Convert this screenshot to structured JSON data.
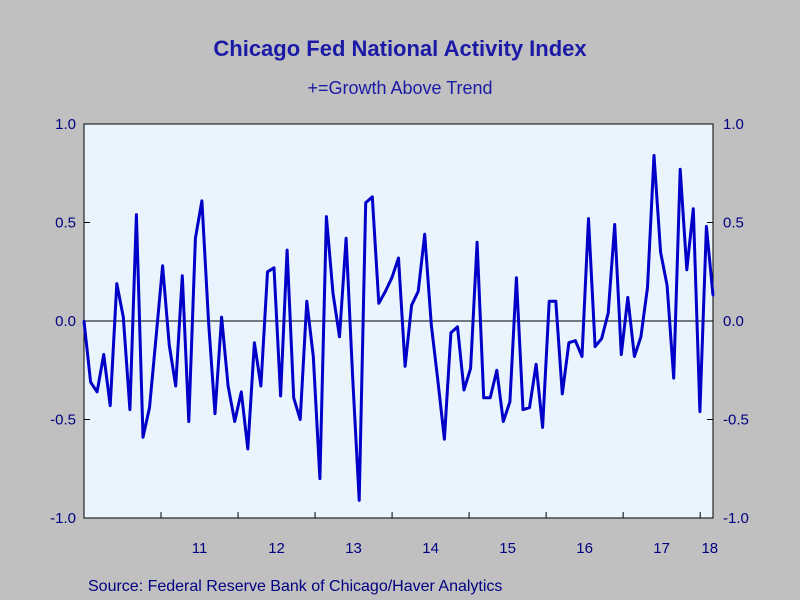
{
  "chart_data": {
    "type": "line",
    "title": "Chicago Fed National Activity Index",
    "subtitle": "+=Growth Above Trend",
    "source": "Source:  Federal Reserve Bank of Chicago/Haver Analytics",
    "ylim": [
      -1.0,
      1.0
    ],
    "y_ticks": [
      "1.0",
      "0.5",
      "0.0",
      "-0.5",
      "-1.0"
    ],
    "x_tick_labels": [
      "11",
      "12",
      "13",
      "14",
      "15",
      "16",
      "17",
      "18"
    ],
    "x_start": "2010-01",
    "x_end": "2018-03",
    "grid": false,
    "zero_line": true,
    "colors": {
      "line": "#0000c8",
      "plot_background": "#eaf4ff",
      "page_background": "#c0c0c0",
      "text": "#000080",
      "title": "#1a1aa6"
    },
    "series": [
      {
        "values": [
          0.0,
          -0.31,
          -0.36,
          -0.17,
          -0.43,
          0.19,
          0.02,
          -0.45,
          0.54,
          -0.59,
          -0.44,
          -0.08,
          0.28,
          -0.12,
          -0.33,
          0.23,
          -0.51,
          0.42,
          0.61,
          0.0,
          -0.47,
          0.02,
          -0.33,
          -0.51,
          -0.36,
          -0.65,
          -0.11,
          -0.33,
          0.25,
          0.27,
          -0.38,
          0.36,
          -0.39,
          -0.5,
          0.1,
          -0.18,
          -0.8,
          0.53,
          0.14,
          -0.08,
          0.42,
          -0.28,
          -0.91,
          0.6,
          0.63,
          0.09,
          0.15,
          0.22,
          0.32,
          -0.23,
          0.08,
          0.15,
          0.44,
          -0.02,
          -0.3,
          -0.6,
          -0.06,
          -0.03,
          -0.35,
          -0.24,
          0.4,
          -0.39,
          -0.39,
          -0.25,
          -0.51,
          -0.41,
          0.22,
          -0.45,
          -0.44,
          -0.22,
          -0.54,
          0.1,
          0.1,
          -0.37,
          -0.11,
          -0.1,
          -0.18,
          0.52,
          -0.13,
          -0.09,
          0.04,
          0.49,
          -0.17,
          0.12,
          -0.18,
          -0.08,
          0.17,
          0.84,
          0.35,
          0.18,
          -0.29,
          0.77,
          0.26,
          0.57,
          -0.46,
          0.48,
          0.13
        ]
      }
    ]
  }
}
